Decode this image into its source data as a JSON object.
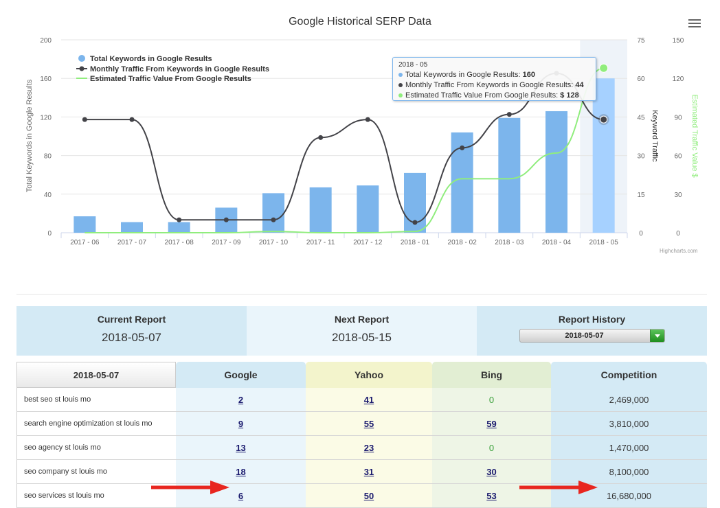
{
  "chart_data": {
    "type": "bar",
    "title": "Google Historical SERP Data",
    "categories": [
      "2017 - 06",
      "2017 - 07",
      "2017 - 08",
      "2017 - 09",
      "2017 - 10",
      "2017 - 11",
      "2017 - 12",
      "2018 - 01",
      "2018 - 02",
      "2018 - 03",
      "2018 - 04",
      "2018 - 05"
    ],
    "series": [
      {
        "name": "Total Keywords in Google Results",
        "type": "bar",
        "axis": "left",
        "color": "#7cb5ec",
        "values": [
          17,
          11,
          11,
          26,
          41,
          47,
          49,
          62,
          104,
          119,
          126,
          160
        ]
      },
      {
        "name": "Monthly Traffic From Keywords in Google Results",
        "type": "line",
        "axis": "keyword-traffic",
        "color": "#434348",
        "values": [
          44,
          44,
          5,
          5,
          5,
          37,
          44,
          4,
          33,
          46,
          62,
          44
        ]
      },
      {
        "name": "Estimated Traffic Value From Google Results",
        "type": "line",
        "axis": "traffic-value",
        "color": "#90ed7d",
        "values": [
          0,
          0,
          0,
          0,
          1,
          0,
          0,
          1,
          42,
          42,
          62,
          128
        ]
      }
    ],
    "y_left": {
      "label": "Total Keywords in Google Results",
      "range": [
        0,
        200
      ],
      "ticks": [
        "0",
        "40",
        "80",
        "120",
        "160",
        "200"
      ]
    },
    "y_right1": {
      "label": "Keyword Traffic",
      "range": [
        0,
        75
      ],
      "ticks": [
        "0",
        "15",
        "30",
        "45",
        "60",
        "75"
      ]
    },
    "y_right2": {
      "label": "Estimated Traffic Value $",
      "range": [
        0,
        150
      ],
      "ticks": [
        "0",
        "30",
        "60",
        "90",
        "120",
        "150"
      ]
    },
    "legend": "top-left",
    "grid": true,
    "highlighted_category": "2018 - 05"
  },
  "tooltip": {
    "header": "2018 - 05",
    "rows": [
      {
        "label": "Total Keywords in Google Results: ",
        "value": "160",
        "color": "#7cb5ec"
      },
      {
        "label": "Monthly Traffic From Keywords in Google Results: ",
        "value": "44",
        "color": "#434348"
      },
      {
        "label": "Estimated Traffic Value From Google Results: ",
        "value": "$ 128",
        "color": "#90ed7d"
      }
    ]
  },
  "credit": "Highcharts.com",
  "menu_icon": "hamburger-menu-icon",
  "report": {
    "current_label": "Current Report",
    "current_value": "2018-05-07",
    "next_label": "Next Report",
    "next_value": "2018-05-15",
    "history_label": "Report History",
    "history_selected": "2018-05-07"
  },
  "ranks": {
    "headers": {
      "date": "2018-05-07",
      "google": "Google",
      "yahoo": "Yahoo",
      "bing": "Bing",
      "competition": "Competition"
    },
    "rows": [
      {
        "keyword": "best seo st louis mo",
        "google": "2",
        "yahoo": "41",
        "bing": "0",
        "competition": "2,469,000"
      },
      {
        "keyword": "search engine optimization st louis mo",
        "google": "9",
        "yahoo": "55",
        "bing": "59",
        "competition": "3,810,000"
      },
      {
        "keyword": "seo agency st louis mo",
        "google": "13",
        "yahoo": "23",
        "bing": "0",
        "competition": "1,470,000"
      },
      {
        "keyword": "seo company st louis mo",
        "google": "18",
        "yahoo": "31",
        "bing": "30",
        "competition": "8,100,000"
      },
      {
        "keyword": "seo services st louis mo",
        "google": "6",
        "yahoo": "50",
        "bing": "53",
        "competition": "16,680,000"
      }
    ]
  },
  "annotation_color": "#e8261f"
}
